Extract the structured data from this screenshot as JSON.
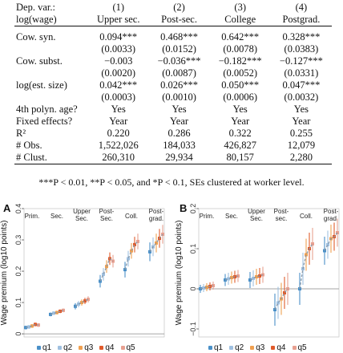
{
  "table": {
    "header1": [
      "Dep. var.:",
      "(1)",
      "(2)",
      "(3)",
      "(4)"
    ],
    "header2": [
      "log(wage)",
      "Upper sec.",
      "Post-sec.",
      "College",
      "Postgrad."
    ],
    "rows": [
      [
        "Cow. syn.",
        "0.094***",
        "0.468***",
        "0.642***",
        "0.328***"
      ],
      [
        "",
        "(0.0033)",
        "(0.0152)",
        "(0.0078)",
        "(0.0383)"
      ],
      [
        "Cow. subst.",
        "−0.003",
        "−0.036***",
        "−0.182***",
        "−0.127***"
      ],
      [
        "",
        "(0.0020)",
        "(0.0087)",
        "(0.0052)",
        "(0.0331)"
      ],
      [
        "log(est. size)",
        "0.042***",
        "0.026***",
        "0.050***",
        "0.047***"
      ],
      [
        "",
        "(0.0003)",
        "(0.0010)",
        "(0.0006)",
        "(0.0032)"
      ],
      [
        "4th polyn. age?",
        "Yes",
        "Yes",
        "Yes",
        "Yes"
      ],
      [
        "Fixed effects?",
        "Year",
        "Year",
        "Year",
        "Year"
      ],
      [
        "R²",
        "0.220",
        "0.286",
        "0.322",
        "0.255"
      ],
      [
        "# Obs.",
        "1,522,026",
        "184,033",
        "426,827",
        "12,079"
      ],
      [
        "# Clust.",
        "260,310",
        "29,934",
        "80,157",
        "2,280"
      ]
    ],
    "note": "***P < 0.01, **P < 0.05, and *P < 0.1, SEs clustered at worker level."
  },
  "colors": {
    "q1": "#4a90c8",
    "q2": "#9fc0e0",
    "q3": "#f0a050",
    "q4": "#e05a2a",
    "q5": "#e8a090"
  },
  "chart_data": [
    {
      "type": "scatter",
      "panel": "A",
      "ylabel": "Wage premium (log10 points)",
      "ylim": [
        -0.01,
        0.4
      ],
      "yticks": [
        "0",
        "0.1",
        "0.2",
        "0.3",
        "0.4"
      ],
      "category_labels": [
        "Prim.",
        "Sec.",
        "Upper Sec.",
        "Post-Sec.",
        "Coll.",
        "Post-grad."
      ],
      "series": [
        {
          "name": "q1",
          "values": [
            0.02,
            0.062,
            0.088,
            0.168,
            0.205,
            0.262
          ]
        },
        {
          "name": "q2",
          "values": [
            0.022,
            0.066,
            0.095,
            0.19,
            0.24,
            0.278
          ]
        },
        {
          "name": "q3",
          "values": [
            0.025,
            0.068,
            0.1,
            0.215,
            0.265,
            0.29
          ]
        },
        {
          "name": "q4",
          "values": [
            0.03,
            0.072,
            0.105,
            0.24,
            0.285,
            0.305
          ]
        },
        {
          "name": "q5",
          "values": [
            0.028,
            0.075,
            0.11,
            0.232,
            0.295,
            0.318
          ]
        }
      ]
    },
    {
      "type": "scatter",
      "panel": "B",
      "ylabel": "Wage premium (log10 points)",
      "ylim": [
        -0.12,
        0.2
      ],
      "yticks": [
        "−0.1",
        "0",
        "0.1",
        "0.2"
      ],
      "category_labels": [
        "Prim.",
        "Sec.",
        "Upper Sec.",
        "Post-sec.",
        "Coll.",
        "Post-grad."
      ],
      "series": [
        {
          "name": "q1",
          "values": [
            0.0,
            0.022,
            0.022,
            -0.052,
            0.0,
            0.095
          ]
        },
        {
          "name": "q2",
          "values": [
            0.002,
            0.025,
            0.026,
            -0.035,
            0.05,
            0.11
          ]
        },
        {
          "name": "q3",
          "values": [
            0.004,
            0.028,
            0.03,
            -0.025,
            0.085,
            0.125
          ]
        },
        {
          "name": "q4",
          "values": [
            0.006,
            0.03,
            0.032,
            -0.01,
            0.1,
            0.13
          ]
        },
        {
          "name": "q5",
          "values": [
            0.008,
            0.032,
            0.035,
            0.0,
            0.112,
            0.14
          ]
        }
      ]
    }
  ]
}
